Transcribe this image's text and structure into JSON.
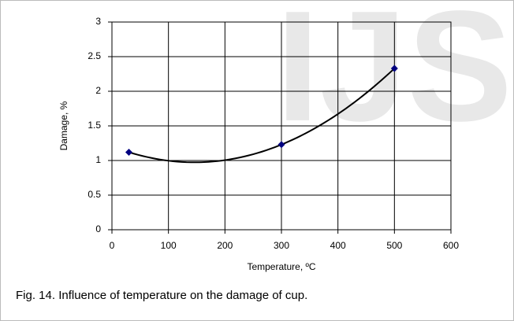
{
  "chart_data": {
    "type": "scatter",
    "watermark": "IJS",
    "caption": "Fig. 14. Influence of temperature on the damage of cup.",
    "xlabel": "Temperature, ºC",
    "ylabel": "Damage, %",
    "series": [
      {
        "color": "#000080",
        "x": [
          30,
          300,
          500
        ],
        "values": [
          1.12,
          1.23,
          2.33
        ]
      }
    ],
    "trendline": {
      "type": "polynomial",
      "order": 2,
      "color": "#000000"
    },
    "xlim": [
      0,
      600
    ],
    "xticks": [
      0,
      100,
      200,
      300,
      400,
      500,
      600
    ],
    "ylim": [
      0,
      3
    ],
    "yticks": [
      0,
      0.5,
      1,
      1.5,
      2,
      2.5,
      3
    ],
    "grid": true
  }
}
